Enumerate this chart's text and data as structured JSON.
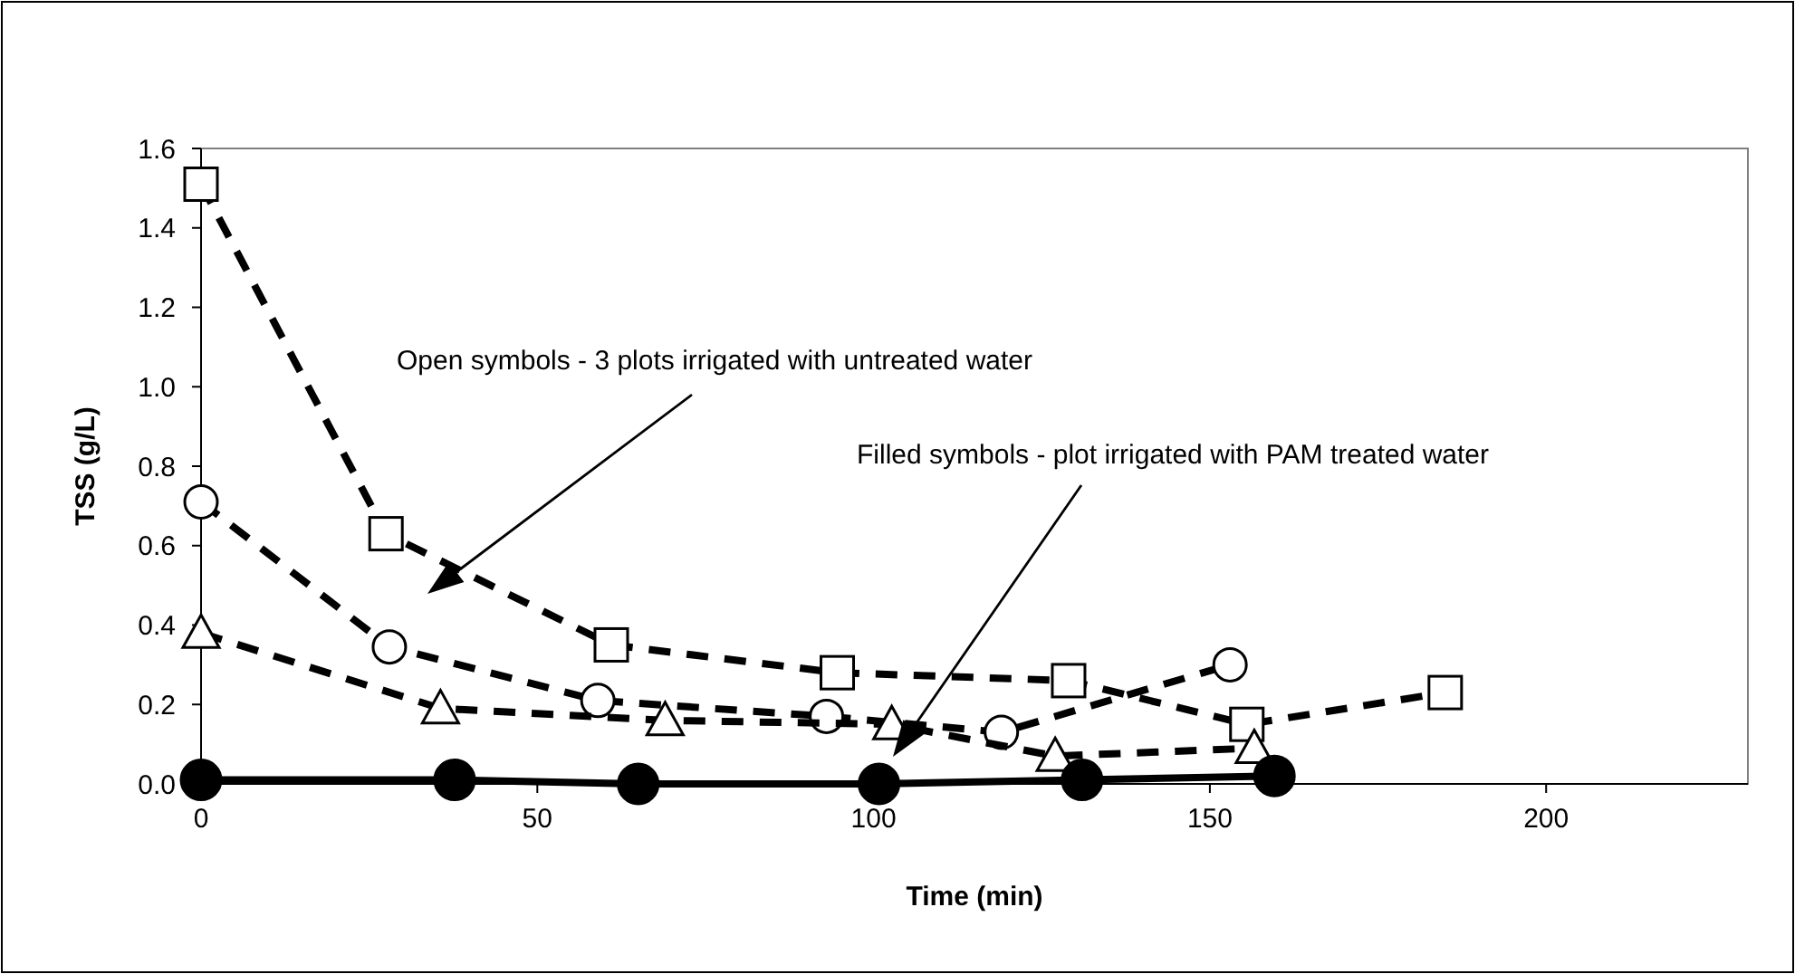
{
  "chart_data": {
    "type": "line",
    "xlabel": "Time (min)",
    "ylabel": "TSS (g/L)",
    "xlim": [
      0,
      230
    ],
    "xticks": [
      0,
      50,
      100,
      150,
      200
    ],
    "ylim": [
      0,
      1.6
    ],
    "yticks": [
      {
        "value": 0,
        "label": "0.0"
      },
      {
        "value": 0.2,
        "label": "0.2"
      },
      {
        "value": 0.4,
        "label": "0.4"
      },
      {
        "value": 0.6,
        "label": "0.6"
      },
      {
        "value": 0.8,
        "label": "0.8"
      },
      {
        "value": 1,
        "label": "1.0"
      },
      {
        "value": 1.2,
        "label": "1.2"
      },
      {
        "value": 1.4,
        "label": "1.4"
      },
      {
        "value": 1.6,
        "label": "1.6"
      }
    ],
    "grid": false,
    "series": [
      {
        "color": "#000000",
        "marker": "square",
        "line_style": "dashed",
        "x": [
          0,
          27.5,
          61,
          94.6,
          129,
          155.5,
          185
        ],
        "values": [
          1.51,
          0.63,
          0.35,
          0.28,
          0.26,
          0.15,
          0.23
        ]
      },
      {
        "color": "#000000",
        "marker": "circle",
        "line_style": "dashed",
        "x": [
          0,
          28,
          59,
          93,
          119,
          153
        ],
        "values": [
          0.71,
          0.345,
          0.21,
          0.17,
          0.13,
          0.3
        ]
      },
      {
        "color": "#000000",
        "marker": "triangle",
        "line_style": "dashed",
        "x": [
          0,
          35.6,
          69,
          102.7,
          127,
          156.6
        ],
        "values": [
          0.38,
          0.19,
          0.16,
          0.15,
          0.07,
          0.09
        ]
      },
      {
        "color": "#000000",
        "marker": "circle",
        "line_style": "solid",
        "x": [
          0,
          37.7,
          65,
          100.8,
          131,
          159.6
        ],
        "values": [
          0.01,
          0.01,
          0,
          0,
          0.01,
          0.02
        ]
      }
    ],
    "annotations": [
      "Open symbols - 3 plots irrigated with untreated water",
      "Filled symbols - plot irrigated with PAM treated water"
    ]
  }
}
